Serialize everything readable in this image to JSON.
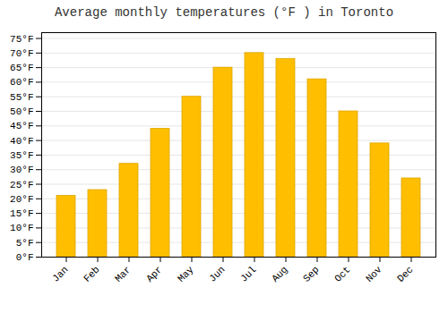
{
  "chart_data": {
    "type": "bar",
    "title": "Average monthly temperatures (°F ) in Toronto",
    "categories": [
      "Jan",
      "Feb",
      "Mar",
      "Apr",
      "May",
      "Jun",
      "Jul",
      "Aug",
      "Sep",
      "Oct",
      "Nov",
      "Dec"
    ],
    "values": [
      21,
      23,
      32,
      44,
      55,
      65,
      70,
      68,
      61,
      50,
      39,
      27
    ],
    "color": "#FFBF00",
    "ylim": [
      0,
      77
    ],
    "yticks": [
      {
        "value": 0,
        "label": "0°F"
      },
      {
        "value": 5,
        "label": "5°F"
      },
      {
        "value": 10,
        "label": "10°F"
      },
      {
        "value": 15,
        "label": "15°F"
      },
      {
        "value": 20,
        "label": "20°F"
      },
      {
        "value": 25,
        "label": "25°F"
      },
      {
        "value": 30,
        "label": "30°F"
      },
      {
        "value": 35,
        "label": "35°F"
      },
      {
        "value": 40,
        "label": "40°F"
      },
      {
        "value": 45,
        "label": "45°F"
      },
      {
        "value": 50,
        "label": "50°F"
      },
      {
        "value": 55,
        "label": "55°F"
      },
      {
        "value": 60,
        "label": "60°F"
      },
      {
        "value": 65,
        "label": "65°F"
      },
      {
        "value": 70,
        "label": "70°F"
      },
      {
        "value": 75,
        "label": "75°F"
      }
    ],
    "grid": true
  }
}
